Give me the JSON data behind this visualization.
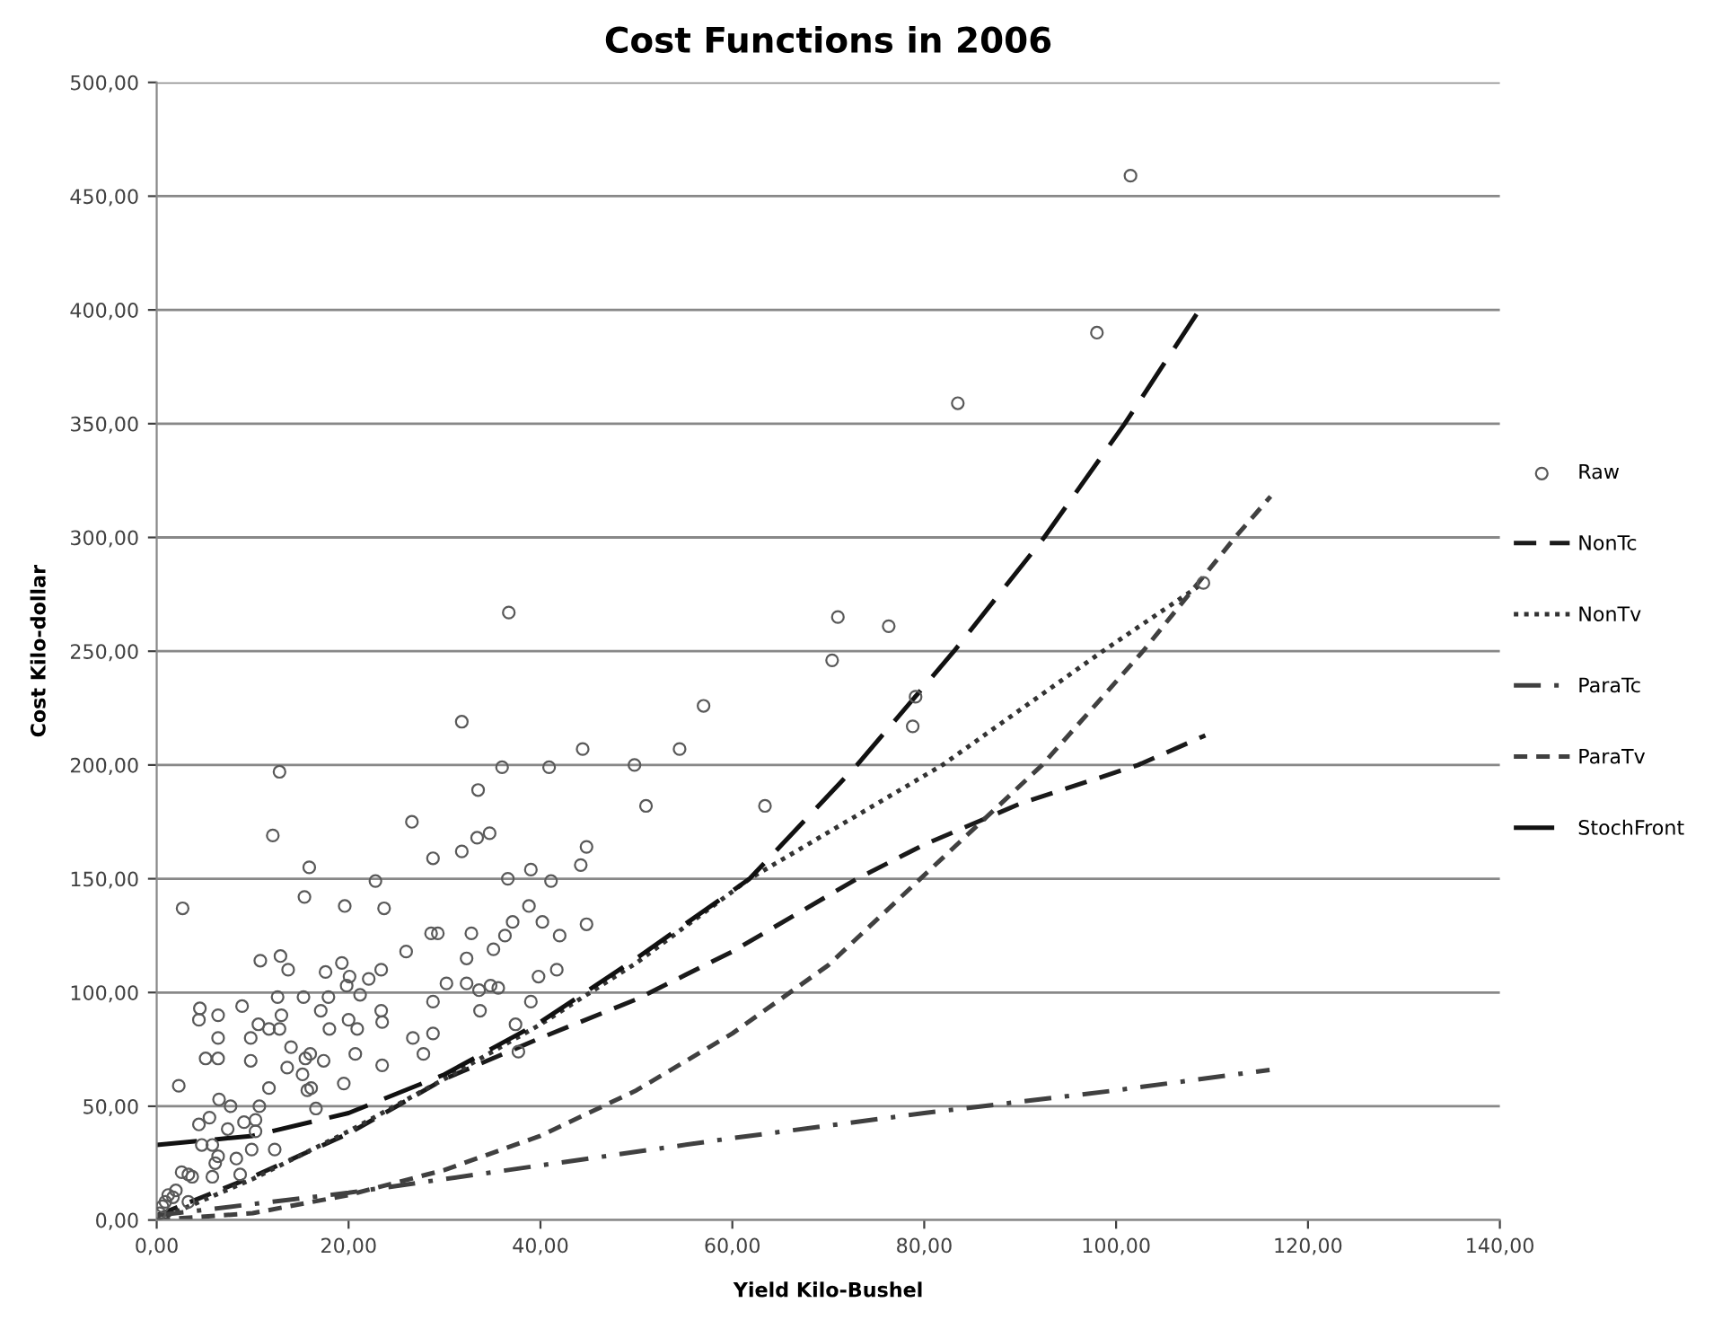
{
  "chart_data": {
    "type": "scatter",
    "title": "Cost Functions in 2006",
    "xlabel": "Yield Kilo-Bushel",
    "ylabel": "Cost Kilo-dollar",
    "xlim": [
      0,
      140
    ],
    "ylim": [
      0,
      500
    ],
    "xticks": [
      {
        "value": 0,
        "label": "0,00"
      },
      {
        "value": 20,
        "label": "20,00"
      },
      {
        "value": 40,
        "label": "40,00"
      },
      {
        "value": 60,
        "label": "60,00"
      },
      {
        "value": 80,
        "label": "80,00"
      },
      {
        "value": 100,
        "label": "100,00"
      },
      {
        "value": 120,
        "label": "120,00"
      },
      {
        "value": 140,
        "label": "140,00"
      }
    ],
    "yticks": [
      {
        "value": 0,
        "label": "0,00"
      },
      {
        "value": 50,
        "label": "50,00"
      },
      {
        "value": 100,
        "label": "100,00"
      },
      {
        "value": 150,
        "label": "150,00"
      },
      {
        "value": 200,
        "label": "200,00"
      },
      {
        "value": 250,
        "label": "250,00"
      },
      {
        "value": 300,
        "label": "300,00"
      },
      {
        "value": 350,
        "label": "350,00"
      },
      {
        "value": 400,
        "label": "400,00"
      },
      {
        "value": 450,
        "label": "450,00"
      },
      {
        "value": 500,
        "label": "500,00"
      }
    ],
    "grid": "y",
    "legend": "right",
    "series": [
      {
        "name": "Raw",
        "marker": "circle",
        "color": "#595959",
        "x": [
          36.7,
          31.8,
          44.4,
          12.8,
          36.0,
          40.9,
          49.8,
          33.5,
          26.6,
          12.1,
          31.8,
          33.4,
          34.7,
          44.8,
          15.9,
          28.8,
          22.8,
          44.2,
          39.0,
          36.6,
          41.1,
          15.4,
          19.6,
          23.7,
          2.7,
          44.8,
          37.1,
          38.8,
          40.2,
          42.0,
          32.8,
          28.6,
          29.3,
          26.0,
          36.3,
          35.1,
          32.3,
          12.9,
          10.8,
          19.3,
          13.7,
          17.6,
          20.1,
          22.1,
          23.4,
          30.2,
          32.3,
          33.6,
          34.8,
          35.6,
          39.8,
          41.7,
          21.2,
          19.8,
          12.6,
          15.3,
          17.9,
          4.5,
          4.4,
          6.4,
          8.9,
          10.6,
          13.0,
          17.1,
          18.0,
          23.4,
          23.5,
          20.0,
          20.9,
          6.4,
          9.8,
          11.7,
          12.8,
          14.0,
          15.5,
          16.0,
          17.4,
          13.6,
          15.2,
          5.1,
          6.4,
          9.8,
          20.7,
          23.5,
          26.7,
          27.8,
          28.8,
          28.8,
          33.7,
          37.4,
          39.0,
          37.7,
          16.1,
          15.7,
          19.5,
          16.6,
          11.7,
          10.7,
          7.7,
          6.5,
          5.5,
          4.4,
          9.1,
          10.3,
          10.3,
          9.9,
          12.3,
          7.4,
          5.8,
          4.7,
          6.4,
          6.1,
          8.3,
          5.8,
          2.6,
          3.3,
          3.7,
          8.7,
          2.3,
          1.2,
          2.0,
          0.9,
          0.6,
          0.3,
          3.3,
          1.7,
          101.5,
          98.0,
          83.5,
          109.1,
          71.0,
          76.3,
          70.4,
          79.1,
          78.8,
          57.0,
          54.5,
          51.0,
          63.4
        ],
        "values": [
          267,
          219,
          207,
          197,
          199,
          199,
          200,
          189,
          175,
          169,
          162,
          168,
          170,
          164,
          155,
          159,
          149,
          156,
          154,
          150,
          149,
          142,
          138,
          137,
          137,
          130,
          131,
          138,
          131,
          125,
          126,
          126,
          126,
          118,
          125,
          119,
          115,
          116,
          114,
          113,
          110,
          109,
          107,
          106,
          110,
          104,
          104,
          101,
          103,
          102,
          107,
          110,
          99,
          103,
          98,
          98,
          98,
          93,
          88,
          90,
          94,
          86,
          90,
          92,
          84,
          92,
          87,
          88,
          84,
          80,
          80,
          84,
          84,
          76,
          71,
          73,
          70,
          67,
          64,
          71,
          71,
          70,
          73,
          68,
          80,
          73,
          82,
          96,
          92,
          86,
          96,
          74,
          58,
          57,
          60,
          49,
          58,
          50,
          50,
          53,
          45,
          42,
          43,
          44,
          39,
          31,
          31,
          40,
          33,
          33,
          28,
          25,
          27,
          19,
          21,
          20,
          19,
          20,
          59,
          11,
          13,
          8,
          6,
          3,
          8,
          10,
          459,
          390,
          359,
          280,
          265,
          261,
          246,
          230,
          217,
          226,
          207,
          182,
          182
        ]
      },
      {
        "name": "NonTc",
        "type": "line",
        "line_style": "dashed",
        "color": "#1a1a1a",
        "x": [
          0,
          10,
          20,
          30,
          40,
          50,
          60,
          73,
          80,
          90,
          102.3,
          109.3
        ],
        "values": [
          2,
          19,
          38,
          62,
          80,
          97,
          118,
          150,
          165,
          183,
          200,
          213
        ]
      },
      {
        "name": "NonTv",
        "type": "line",
        "line_style": "dotted",
        "color": "#333333",
        "x": [
          0,
          10,
          20,
          30,
          40,
          50,
          61.8,
          81.9,
          98.6,
          109.1
        ],
        "values": [
          0,
          18,
          39,
          62,
          86,
          113,
          150,
          200,
          250,
          280
        ]
      },
      {
        "name": "ParaTc",
        "type": "line",
        "line_style": "dashdot",
        "color": "#404040",
        "x": [
          0,
          20,
          40,
          60,
          80,
          100,
          116
        ],
        "values": [
          2,
          12,
          24,
          36,
          47,
          57,
          66
        ]
      },
      {
        "name": "ParaTv",
        "type": "line",
        "line_style": "shortdash",
        "color": "#404040",
        "x": [
          0,
          10,
          20,
          30,
          40,
          50,
          60,
          70,
          79.6,
          92.3,
          102.8,
          112.4,
          116.1
        ],
        "values": [
          0,
          3,
          11,
          22,
          37,
          57,
          82,
          112,
          150,
          200,
          250,
          300,
          318
        ]
      },
      {
        "name": "StochFront",
        "type": "line",
        "line_style": "longdash",
        "color": "#111111",
        "x": [
          0,
          10,
          20,
          30,
          40,
          50,
          61.8,
          73,
          83.1,
          92.5,
          100.9,
          109.3
        ],
        "values": [
          33,
          37,
          47,
          64,
          87,
          115,
          150,
          200,
          250,
          300,
          350,
          404
        ]
      }
    ]
  }
}
